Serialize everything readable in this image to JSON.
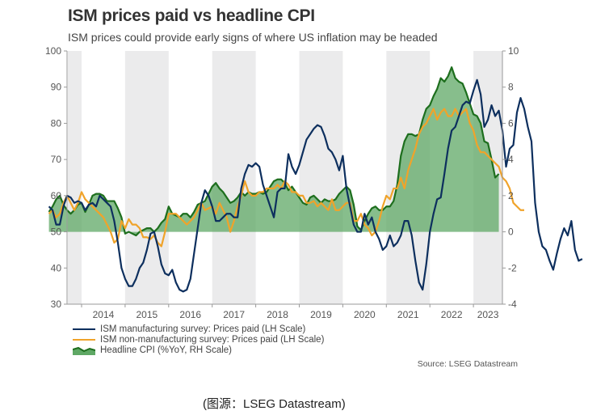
{
  "title": "ISM prices paid vs headline CPI",
  "subtitle": "ISM prices could provide early signs of where US inflation may be headed",
  "source": "Source: LSEG Datastream",
  "caption": "(图源：LSEG Datastream)",
  "colors": {
    "ism_manufacturing": "#0d2f5e",
    "ism_non_manufacturing": "#f0a32a",
    "cpi_line": "#1d6e1d",
    "cpi_fill": "#5fa865",
    "band": "#ebebec"
  },
  "chart_data": {
    "type": "line",
    "title": "ISM prices paid vs headline CPI",
    "subtitle": "ISM prices could provide early signs of where US inflation may be headed",
    "x_start": "2013-04",
    "x_end": "2023-06",
    "x_frequency": "monthly",
    "x_tick_labels": [
      "2014",
      "2015",
      "2016",
      "2017",
      "2018",
      "2019",
      "2020",
      "2021",
      "2022",
      "2023"
    ],
    "shaded_years": [
      2013,
      2015,
      2017,
      2019,
      2021,
      2023
    ],
    "left_axis": {
      "label": "LH Scale",
      "ylim": [
        30,
        100
      ],
      "ticks": [
        30,
        40,
        50,
        60,
        70,
        80,
        90,
        100
      ]
    },
    "right_axis": {
      "label": "RH Scale",
      "ylim": [
        -4,
        10
      ],
      "ticks": [
        -4,
        -2,
        0,
        2,
        4,
        6,
        8,
        10
      ]
    },
    "legend_position": "bottom-left",
    "series": [
      {
        "name": "ISM manufacturing survey: Prices paid (LH Scale)",
        "axis": "left",
        "style": "line",
        "values": [
          57,
          56,
          52,
          52,
          57,
          60,
          59.5,
          58,
          58.5,
          58,
          56,
          57.5,
          58,
          57,
          60,
          59,
          58,
          57,
          53,
          47,
          40,
          37,
          35,
          35,
          37,
          40,
          41.5,
          45,
          49.5,
          50,
          46,
          41,
          38.5,
          38,
          39.5,
          36,
          34,
          33.5,
          34,
          37,
          44,
          51,
          58,
          61.5,
          60,
          57,
          53,
          53,
          54,
          55,
          55,
          54,
          54,
          62,
          66,
          68.5,
          68,
          69,
          68,
          63,
          60,
          57,
          54,
          61,
          62,
          62,
          71.5,
          68,
          66,
          68.5,
          72,
          75.5,
          77,
          78.5,
          79.5,
          79,
          76.5,
          73,
          72,
          70,
          67,
          71,
          62,
          57,
          52,
          50,
          50,
          55,
          52,
          54,
          50,
          48,
          45,
          46,
          49,
          46,
          47,
          49,
          53,
          53,
          49,
          42,
          36,
          34,
          41,
          50,
          55,
          59,
          59.5,
          66,
          73,
          78,
          79,
          82,
          85,
          86,
          85.5,
          89,
          92,
          88,
          79,
          81,
          85,
          82,
          83.5,
          78,
          68,
          73,
          74,
          83,
          87,
          84,
          79,
          75,
          58,
          50,
          46,
          45,
          42,
          39.5,
          44,
          48,
          51,
          49,
          53,
          45,
          42,
          42.5
        ]
      },
      {
        "name": "ISM non-manufacturing survey: Prices paid (LH Scale)",
        "axis": "left",
        "style": "line",
        "values": [
          55,
          56,
          54,
          55,
          58,
          60,
          58,
          56,
          58,
          61,
          59,
          58,
          57,
          56,
          55,
          54,
          52,
          50,
          47,
          48,
          53,
          51,
          53.5,
          52,
          52,
          51,
          48.5,
          48.5,
          48,
          49,
          47,
          46,
          50,
          55,
          55,
          55,
          54,
          53,
          52,
          53,
          54,
          56,
          58,
          56,
          56.5,
          57,
          55,
          58,
          56,
          54,
          50,
          53,
          57,
          60,
          64,
          61,
          60,
          60,
          61,
          61,
          62,
          62,
          62,
          63,
          62,
          64,
          63,
          61,
          61,
          60,
          60,
          58,
          58,
          58.5,
          57,
          58,
          57,
          56,
          59,
          56,
          56,
          57,
          58,
          58,
          53,
          53,
          55,
          52,
          51,
          49,
          50,
          53,
          57,
          60,
          59,
          62,
          62,
          65,
          62,
          67,
          70,
          73,
          77,
          79,
          80,
          82,
          84,
          81,
          83,
          84,
          82,
          82,
          84,
          82,
          83,
          84,
          80,
          78,
          74,
          72,
          72,
          71,
          70,
          69,
          68,
          65,
          64,
          62,
          58,
          57,
          56,
          56
        ]
      },
      {
        "name": "Headline CPI (%YoY, RH Scale)",
        "axis": "right",
        "style": "area",
        "values": [
          1.1,
          1.4,
          1.8,
          2.0,
          1.5,
          1.2,
          1.0,
          1.2,
          1.5,
          1.6,
          1.1,
          1.5,
          2.0,
          2.1,
          2.1,
          2.0,
          1.7,
          1.7,
          1.7,
          1.3,
          0.8,
          -0.1,
          0.0,
          -0.1,
          -0.2,
          0.0,
          0.1,
          0.2,
          0.2,
          0.0,
          0.2,
          0.5,
          0.7,
          1.4,
          1.0,
          0.9,
          0.8,
          1.0,
          1.0,
          0.8,
          1.1,
          1.5,
          1.6,
          1.7,
          2.1,
          2.5,
          2.7,
          2.4,
          2.2,
          1.9,
          1.6,
          1.7,
          1.9,
          2.2,
          2.0,
          2.2,
          2.1,
          2.1,
          2.2,
          2.1,
          2.2,
          2.5,
          2.8,
          2.9,
          2.9,
          2.7,
          2.3,
          2.5,
          2.2,
          1.9,
          1.6,
          1.5,
          1.9,
          2.0,
          1.8,
          1.6,
          1.8,
          1.7,
          1.7,
          1.8,
          2.1,
          2.3,
          2.5,
          2.3,
          1.5,
          0.3,
          0.1,
          0.6,
          1.0,
          1.3,
          1.4,
          1.2,
          1.2,
          1.4,
          1.4,
          1.7,
          2.6,
          4.2,
          5.0,
          5.4,
          5.4,
          5.3,
          5.4,
          6.2,
          6.8,
          7.0,
          7.5,
          7.9,
          8.5,
          8.3,
          8.6,
          9.1,
          8.5,
          8.3,
          8.2,
          7.7,
          7.1,
          6.5,
          6.4,
          6.0,
          5.0,
          4.9,
          4.0,
          3.0,
          3.2
        ]
      }
    ]
  }
}
